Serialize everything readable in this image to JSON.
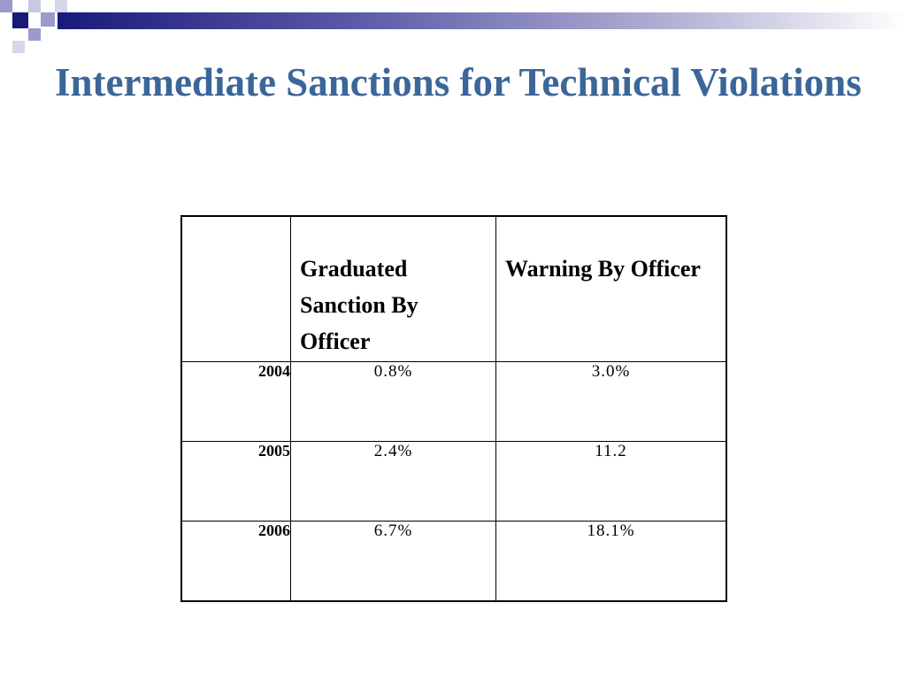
{
  "title": "Intermediate Sanctions for Technical Violations",
  "table": {
    "headers": [
      "",
      "Graduated Sanction By Officer",
      "Warning By Officer"
    ],
    "rows": [
      {
        "year": "2004",
        "graduated": "0.8%",
        "warning": "3.0%"
      },
      {
        "year": "2005",
        "graduated": "2.4%",
        "warning": "11.2"
      },
      {
        "year": "2006",
        "graduated": "6.7%",
        "warning": "18.1%"
      }
    ]
  },
  "colors": {
    "title": "#3b6699",
    "accent_dark": "#1a1a7a",
    "accent_light": "#9a9acc"
  }
}
